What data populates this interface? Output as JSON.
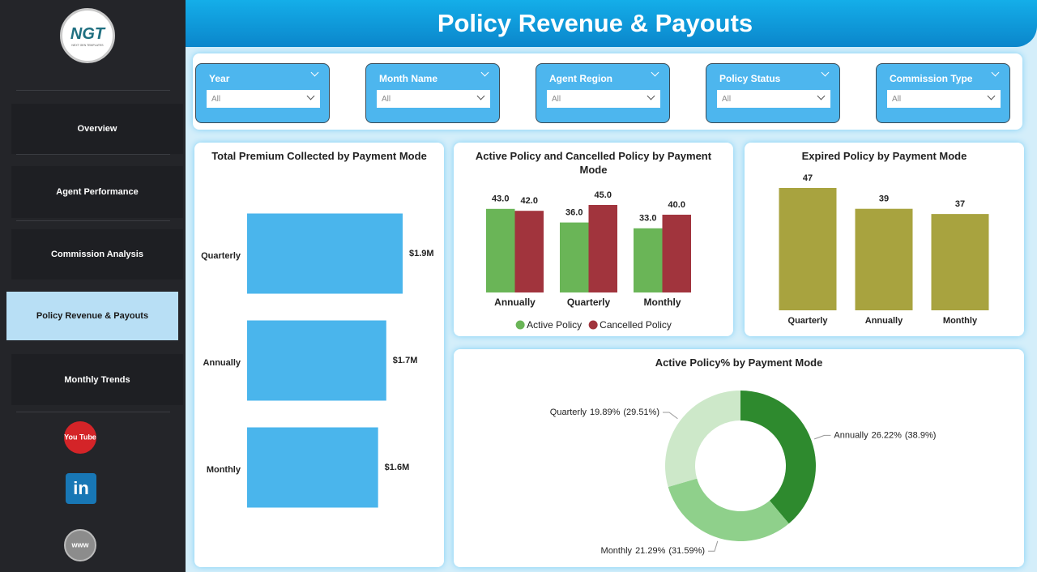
{
  "sidebar": {
    "logo": {
      "text": "NGT",
      "subtext": "NEXT GEN TEMPLATES"
    },
    "nav": [
      "Overview",
      "Agent Performance",
      "Commission Analysis",
      "Policy Revenue & Payouts",
      "Monthly Trends"
    ],
    "social": [
      "You Tube",
      "in",
      "www"
    ]
  },
  "header": {
    "title": "Policy Revenue & Payouts"
  },
  "filters": [
    {
      "label": "Year",
      "value": "All"
    },
    {
      "label": "Month Name",
      "value": "All"
    },
    {
      "label": "Agent Region",
      "value": "All"
    },
    {
      "label": "Policy Status",
      "value": "All"
    },
    {
      "label": "Commission Type",
      "value": "All"
    }
  ],
  "chart_data": [
    {
      "type": "hbar",
      "title": "Total Premium Collected by Payment Mode",
      "categories": [
        "Quarterly",
        "Annually",
        "Monthly"
      ],
      "values": [
        1900000,
        1700000,
        1600000
      ],
      "value_labels": [
        "$1.9M",
        "$1.7M",
        "$1.6M"
      ],
      "color": "#4ab5ec"
    },
    {
      "type": "bar",
      "title": "Active Policy and Cancelled Policy by Payment Mode",
      "categories": [
        "Annually",
        "Quarterly",
        "Monthly"
      ],
      "series": [
        {
          "name": "Active Policy",
          "color": "#6ab557",
          "values": [
            43,
            36,
            33
          ],
          "value_labels": [
            "43.0",
            "36.0",
            "33.0"
          ]
        },
        {
          "name": "Cancelled Policy",
          "color": "#a1343d",
          "values": [
            42,
            45,
            40
          ],
          "value_labels": [
            "42.0",
            "45.0",
            "40.0"
          ]
        }
      ],
      "legend": "bottom"
    },
    {
      "type": "bar",
      "title": "Expired Policy by Payment Mode",
      "categories": [
        "Quarterly",
        "Annually",
        "Monthly"
      ],
      "values": [
        47,
        39,
        37
      ],
      "color": "#a8a33f"
    },
    {
      "type": "donut",
      "title": "Active Policy% by Payment Mode",
      "categories": [
        "Annually",
        "Monthly",
        "Quarterly"
      ],
      "values": [
        38.9,
        31.59,
        29.51
      ],
      "value_labels": [
        "(38.9%)",
        "(31.59%)",
        "(29.51%)"
      ],
      "share_labels": [
        "26.22%",
        "21.29%",
        "19.89%"
      ],
      "colors": [
        "#2e8a2e",
        "#8fd08b",
        "#cde8c9"
      ]
    }
  ]
}
